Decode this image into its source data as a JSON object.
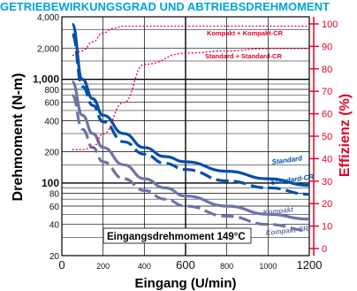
{
  "chart_data": {
    "type": "line",
    "title": "GETRIEBEWIRKUNGSGRAD UND ABTRIEBSDREHMOMENT",
    "xlabel": "Eingang (U/min)",
    "ylabel": "Drehmoment (N-m)",
    "ylabel_right": "Effizienz (%)",
    "x_scale": "linear",
    "y_scale": "log",
    "xlim": [
      0,
      1200
    ],
    "ylim": [
      20,
      4000
    ],
    "y2lim": [
      0,
      100
    ],
    "x_ticks": [
      {
        "value": 0,
        "label": "0",
        "major": true
      },
      {
        "value": 200,
        "label": "200",
        "major": false
      },
      {
        "value": 400,
        "label": "400",
        "major": false
      },
      {
        "value": 600,
        "label": "600",
        "major": true
      },
      {
        "value": 800,
        "label": "800",
        "major": false
      },
      {
        "value": 1000,
        "label": "1000",
        "major": false
      },
      {
        "value": 1200,
        "label": "1200",
        "major": true
      }
    ],
    "y_ticks": [
      {
        "value": 4000,
        "label": "4,000",
        "major": false
      },
      {
        "value": 2000,
        "label": "2,000",
        "major": false
      },
      {
        "value": 1000,
        "label": "1,000",
        "major": true
      },
      {
        "value": 800,
        "label": "800",
        "major": false
      },
      {
        "value": 600,
        "label": "600",
        "major": false
      },
      {
        "value": 400,
        "label": "400",
        "major": false
      },
      {
        "value": 200,
        "label": "200",
        "major": false
      },
      {
        "value": 100,
        "label": "100",
        "major": true
      },
      {
        "value": 80,
        "label": "80",
        "major": false
      },
      {
        "value": 60,
        "label": "60",
        "major": false
      },
      {
        "value": 40,
        "label": "40",
        "major": false
      },
      {
        "value": 20,
        "label": "20",
        "major": false
      }
    ],
    "y2_ticks": [
      {
        "value": 100,
        "label": "100"
      },
      {
        "value": 90,
        "label": "90"
      },
      {
        "value": 80,
        "label": "80"
      },
      {
        "value": 70,
        "label": "70"
      },
      {
        "value": 60,
        "label": "60"
      },
      {
        "value": 50,
        "label": "50"
      },
      {
        "value": 40,
        "label": "40"
      },
      {
        "value": 30,
        "label": "30"
      },
      {
        "value": 20,
        "label": "20"
      },
      {
        "value": 10,
        "label": "10"
      },
      {
        "value": 0,
        "label": "0"
      }
    ],
    "y_minor_grid": [
      3000,
      1500,
      900,
      700,
      500,
      300,
      150,
      90,
      70,
      50,
      30
    ],
    "grid": true,
    "series": [
      {
        "name": "Standard",
        "axis": "left",
        "color": "#0050a8",
        "dash": "solid",
        "x": [
          50,
          100,
          150,
          200,
          300,
          400,
          500,
          600,
          800,
          1000,
          1200
        ],
        "y": [
          3400,
          1000,
          650,
          450,
          300,
          220,
          180,
          160,
          130,
          110,
          95
        ]
      },
      {
        "name": "Standard-CR",
        "axis": "left",
        "color": "#0050a8",
        "dash": "dashed",
        "x": [
          50,
          100,
          150,
          200,
          300,
          400,
          500,
          600,
          800,
          1000,
          1200
        ],
        "y": [
          2700,
          850,
          560,
          390,
          250,
          190,
          155,
          135,
          105,
          90,
          78
        ]
      },
      {
        "name": "Kompakt",
        "axis": "left",
        "color": "#6e73a6",
        "dash": "solid",
        "x": [
          50,
          100,
          150,
          200,
          300,
          400,
          500,
          600,
          800,
          1000,
          1200
        ],
        "y": [
          950,
          450,
          300,
          220,
          150,
          110,
          90,
          75,
          60,
          50,
          45
        ]
      },
      {
        "name": "Kompakt-CR",
        "axis": "left",
        "color": "#6e73a6",
        "dash": "dashed",
        "x": [
          50,
          100,
          150,
          200,
          300,
          400,
          500,
          600,
          800,
          1000,
          1200
        ],
        "y": [
          700,
          330,
          220,
          160,
          110,
          85,
          70,
          60,
          48,
          40,
          35
        ]
      },
      {
        "name": "Kompakt + Kompakt-CR",
        "axis": "right",
        "color": "#e0002a",
        "dash": "dotted",
        "x": [
          50,
          100,
          150,
          200,
          250,
          300,
          400,
          600,
          800,
          1000,
          1200
        ],
        "y": [
          86,
          88,
          92,
          96,
          98,
          99,
          99,
          99,
          99,
          99,
          99
        ]
      },
      {
        "name": "Standard + Standard-CR",
        "axis": "right",
        "color": "#e0002a",
        "dash": "dotted",
        "x": [
          50,
          100,
          150,
          200,
          300,
          400,
          600,
          800,
          1000,
          1200
        ],
        "y": [
          44,
          44,
          45,
          51,
          65,
          82,
          87,
          88,
          89,
          89
        ]
      }
    ],
    "annotations": [
      {
        "text": "Eingangsdrehmoment 149°C",
        "x": 170,
        "y": 30
      },
      {
        "text": "Kompakt + Kompakt-CR",
        "x": 520,
        "y": 90,
        "axis": "right"
      },
      {
        "text": "Standard + Standard-CR",
        "x": 510,
        "y": 81,
        "axis": "right"
      }
    ]
  }
}
